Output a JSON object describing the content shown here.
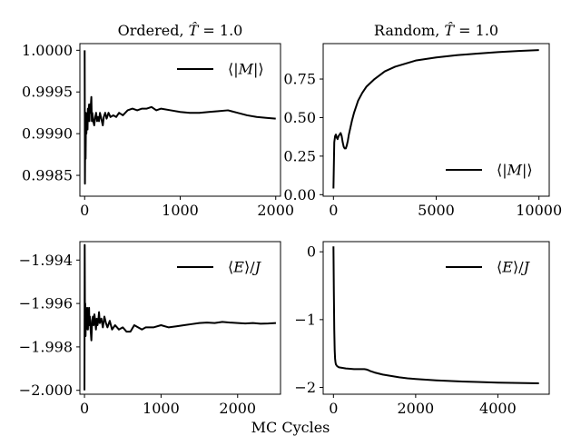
{
  "figure": {
    "xlabel": "MC Cycles"
  },
  "chart_data": [
    {
      "type": "line",
      "title": "Ordered, T̂ = 1.0",
      "xlim": [
        -50,
        2050
      ],
      "ylim": [
        0.99825,
        1.00008
      ],
      "xticks": [
        0,
        1000,
        2000
      ],
      "xtick_labels": [
        "0",
        "1000",
        "2000"
      ],
      "yticks": [
        0.9985,
        0.999,
        0.9995,
        1.0
      ],
      "ytick_labels": [
        "0.9985",
        "0.9990",
        "0.9995",
        "1.0000"
      ],
      "legend": {
        "position": "upper-right"
      },
      "series": [
        {
          "name": "⟨|M|⟩",
          "color": "#000000",
          "x": [
            0,
            3,
            6,
            10,
            14,
            18,
            22,
            26,
            30,
            34,
            38,
            42,
            46,
            50,
            55,
            60,
            65,
            70,
            75,
            80,
            90,
            100,
            110,
            120,
            130,
            140,
            150,
            160,
            170,
            180,
            190,
            200,
            215,
            230,
            250,
            270,
            300,
            330,
            360,
            400,
            450,
            500,
            550,
            600,
            650,
            700,
            750,
            800,
            900,
            1000,
            1100,
            1200,
            1300,
            1400,
            1500,
            1600,
            1700,
            1800,
            1900,
            2000
          ],
          "y": [
            1.0,
            0.9984,
            0.9991,
            0.9987,
            0.99925,
            0.999,
            0.99915,
            0.9992,
            0.99905,
            0.9993,
            0.99915,
            0.99925,
            0.99935,
            0.99915,
            0.99935,
            0.99925,
            0.99935,
            0.99944,
            0.99915,
            0.99925,
            0.99915,
            0.9991,
            0.9992,
            0.99925,
            0.99915,
            0.9992,
            0.99915,
            0.99925,
            0.9992,
            0.99915,
            0.9991,
            0.9992,
            0.99925,
            0.99918,
            0.99925,
            0.9992,
            0.99922,
            0.9992,
            0.99925,
            0.99922,
            0.99928,
            0.9993,
            0.99928,
            0.9993,
            0.9993,
            0.99932,
            0.99928,
            0.9993,
            0.99928,
            0.99926,
            0.99925,
            0.99925,
            0.99926,
            0.99927,
            0.99928,
            0.99925,
            0.99922,
            0.9992,
            0.99919,
            0.99918
          ]
        }
      ]
    },
    {
      "type": "line",
      "title": "Random, T̂ = 1.0",
      "xlim": [
        -500,
        10500
      ],
      "ylim": [
        -0.01,
        0.98
      ],
      "xticks": [
        0,
        5000,
        10000
      ],
      "xtick_labels": [
        "0",
        "5000",
        "10000"
      ],
      "yticks": [
        0.0,
        0.25,
        0.5,
        0.75
      ],
      "ytick_labels": [
        "0.00",
        "0.25",
        "0.50",
        "0.75"
      ],
      "legend": {
        "position": "lower-right"
      },
      "series": [
        {
          "name": "⟨|M|⟩",
          "color": "#000000",
          "x": [
            0,
            40,
            80,
            120,
            160,
            200,
            250,
            300,
            350,
            400,
            450,
            500,
            550,
            600,
            650,
            700,
            750,
            800,
            900,
            1000,
            1200,
            1400,
            1600,
            2000,
            2500,
            3000,
            3500,
            4000,
            5000,
            6000,
            7000,
            8000,
            9000,
            10000
          ],
          "y": [
            0.04,
            0.34,
            0.38,
            0.39,
            0.37,
            0.36,
            0.38,
            0.39,
            0.4,
            0.38,
            0.34,
            0.31,
            0.3,
            0.3,
            0.32,
            0.35,
            0.39,
            0.42,
            0.48,
            0.53,
            0.61,
            0.66,
            0.7,
            0.75,
            0.8,
            0.83,
            0.85,
            0.87,
            0.89,
            0.905,
            0.915,
            0.925,
            0.932,
            0.938
          ]
        }
      ]
    },
    {
      "type": "line",
      "title": "",
      "xlim": [
        -60,
        2560
      ],
      "ylim": [
        -2.00018,
        -1.99315
      ],
      "xticks": [
        0,
        1000,
        2000
      ],
      "xtick_labels": [
        "0",
        "1000",
        "2000"
      ],
      "yticks": [
        -2.0,
        -1.998,
        -1.996,
        -1.994
      ],
      "ytick_labels": [
        "−2.000",
        "−1.998",
        "−1.996",
        "−1.994"
      ],
      "legend": {
        "position": "upper-right"
      },
      "series": [
        {
          "name": "⟨E⟩/J",
          "color": "#000000",
          "x": [
            0,
            3,
            6,
            10,
            14,
            18,
            22,
            26,
            30,
            35,
            40,
            45,
            50,
            55,
            60,
            65,
            70,
            80,
            90,
            100,
            110,
            120,
            130,
            140,
            150,
            160,
            170,
            180,
            190,
            200,
            220,
            240,
            260,
            280,
            300,
            330,
            360,
            400,
            450,
            500,
            550,
            600,
            650,
            700,
            750,
            800,
            900,
            1000,
            1100,
            1200,
            1300,
            1400,
            1500,
            1600,
            1700,
            1800,
            1900,
            2000,
            2100,
            2200,
            2300,
            2400,
            2500
          ],
          "y": [
            -2.0,
            -1.9933,
            -1.9965,
            -1.996,
            -1.9975,
            -1.9968,
            -1.9972,
            -1.9965,
            -1.997,
            -1.9962,
            -1.9968,
            -1.9972,
            -1.9964,
            -1.9968,
            -1.9962,
            -1.997,
            -1.9966,
            -1.9972,
            -1.9977,
            -1.9968,
            -1.9966,
            -1.997,
            -1.9965,
            -1.9968,
            -1.9972,
            -1.9967,
            -1.997,
            -1.9968,
            -1.9964,
            -1.9969,
            -1.9967,
            -1.9971,
            -1.9966,
            -1.9969,
            -1.9971,
            -1.9968,
            -1.9972,
            -1.997,
            -1.9972,
            -1.9971,
            -1.9973,
            -1.9973,
            -1.997,
            -1.9971,
            -1.9972,
            -1.9971,
            -1.9971,
            -1.997,
            -1.9971,
            -1.99705,
            -1.997,
            -1.99695,
            -1.9969,
            -1.99688,
            -1.9969,
            -1.99685,
            -1.99688,
            -1.9969,
            -1.99692,
            -1.9969,
            -1.99693,
            -1.99692,
            -1.9969
          ]
        }
      ]
    },
    {
      "type": "line",
      "title": "",
      "xlim": [
        -250,
        5250
      ],
      "ylim": [
        -2.1,
        0.15
      ],
      "xticks": [
        0,
        2000,
        4000
      ],
      "xtick_labels": [
        "0",
        "2000",
        "4000"
      ],
      "yticks": [
        -2,
        -1,
        0
      ],
      "ytick_labels": [
        "−2",
        "−1",
        "0"
      ],
      "legend": {
        "position": "upper-right"
      },
      "series": [
        {
          "name": "⟨E⟩/J",
          "color": "#000000",
          "x": [
            0,
            10,
            20,
            30,
            40,
            50,
            60,
            80,
            100,
            120,
            150,
            200,
            250,
            300,
            400,
            500,
            600,
            700,
            750,
            800,
            850,
            900,
            1000,
            1200,
            1400,
            1600,
            1800,
            2000,
            2500,
            3000,
            3500,
            4000,
            4500,
            5000
          ],
          "y": [
            0.08,
            -0.6,
            -1.15,
            -1.45,
            -1.58,
            -1.63,
            -1.66,
            -1.68,
            -1.69,
            -1.7,
            -1.705,
            -1.71,
            -1.715,
            -1.72,
            -1.725,
            -1.73,
            -1.73,
            -1.73,
            -1.73,
            -1.735,
            -1.745,
            -1.76,
            -1.78,
            -1.81,
            -1.83,
            -1.85,
            -1.865,
            -1.875,
            -1.895,
            -1.91,
            -1.92,
            -1.93,
            -1.935,
            -1.94
          ]
        }
      ]
    }
  ]
}
